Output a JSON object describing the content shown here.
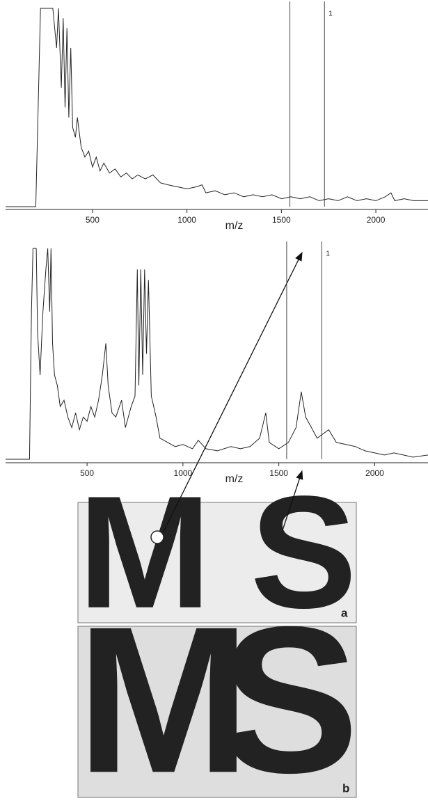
{
  "chart_data": [
    {
      "type": "line",
      "xlabel": "m/z",
      "color": "#222222",
      "x": [
        40,
        200,
        215,
        225,
        260,
        290,
        310,
        320,
        335,
        345,
        355,
        365,
        375,
        385,
        395,
        410,
        420,
        440,
        460,
        480,
        500,
        520,
        540,
        560,
        590,
        620,
        650,
        680,
        710,
        740,
        780,
        820,
        860,
        900,
        950,
        1000,
        1050,
        1080,
        1100,
        1150,
        1200,
        1250,
        1300,
        1350,
        1400,
        1450,
        1500,
        1550,
        1600,
        1650,
        1700,
        1750,
        1800,
        1850,
        1900,
        1950,
        2000,
        2050,
        2080,
        2100,
        2150,
        2200,
        2276
      ],
      "values": [
        0,
        0,
        60,
        100,
        100,
        100,
        80,
        100,
        60,
        95,
        50,
        90,
        45,
        80,
        40,
        35,
        45,
        30,
        25,
        28,
        20,
        25,
        18,
        22,
        17,
        19,
        15,
        17,
        14,
        16,
        14,
        16,
        12,
        11,
        10,
        9,
        10,
        11,
        7,
        8,
        6,
        7,
        5,
        6,
        5,
        6,
        4,
        5,
        4,
        5,
        3,
        4,
        3,
        5,
        3,
        4,
        3,
        5,
        7,
        3,
        4,
        3,
        3
      ],
      "xlim": [
        40,
        2276
      ],
      "ylim": [
        0,
        100
      ],
      "xticks": [
        500,
        1000,
        1500,
        2000
      ],
      "markers": [
        1545,
        1728
      ],
      "marker_label": "1"
    },
    {
      "type": "line",
      "xlabel": "m/z",
      "color": "#222222",
      "x": [
        75,
        200,
        210,
        218,
        235,
        242,
        255,
        270,
        285,
        295,
        305,
        312,
        320,
        330,
        345,
        360,
        380,
        400,
        420,
        440,
        460,
        480,
        500,
        520,
        540,
        560,
        580,
        598,
        610,
        630,
        650,
        680,
        700,
        730,
        750,
        762,
        770,
        780,
        790,
        800,
        810,
        820,
        835,
        860,
        880,
        920,
        960,
        1000,
        1050,
        1080,
        1120,
        1180,
        1250,
        1300,
        1350,
        1400,
        1432,
        1450,
        1500,
        1550,
        1590,
        1617,
        1640,
        1670,
        1700,
        1730,
        1760,
        1800,
        1850,
        1900,
        1950,
        2000,
        2050,
        2100,
        2150,
        2200,
        2278
      ],
      "values": [
        0,
        0,
        70,
        100,
        100,
        60,
        40,
        70,
        90,
        100,
        70,
        100,
        55,
        40,
        35,
        25,
        28,
        20,
        15,
        22,
        14,
        20,
        18,
        25,
        20,
        28,
        40,
        55,
        35,
        22,
        20,
        28,
        15,
        25,
        30,
        90,
        35,
        90,
        40,
        90,
        50,
        85,
        30,
        20,
        10,
        8,
        6,
        7,
        5,
        9,
        5,
        4,
        6,
        5,
        6,
        10,
        22,
        8,
        5,
        8,
        15,
        32,
        20,
        15,
        10,
        12,
        14,
        8,
        7,
        6,
        4,
        3,
        2,
        3,
        2,
        1,
        2
      ],
      "xlim": [
        75,
        2278
      ],
      "ylim": [
        0,
        100
      ],
      "xticks": [
        500,
        1000,
        1500,
        2000
      ],
      "markers": [
        1541,
        1724
      ],
      "marker_label": "1"
    }
  ],
  "images": {
    "labels": [
      "a",
      "b"
    ]
  }
}
